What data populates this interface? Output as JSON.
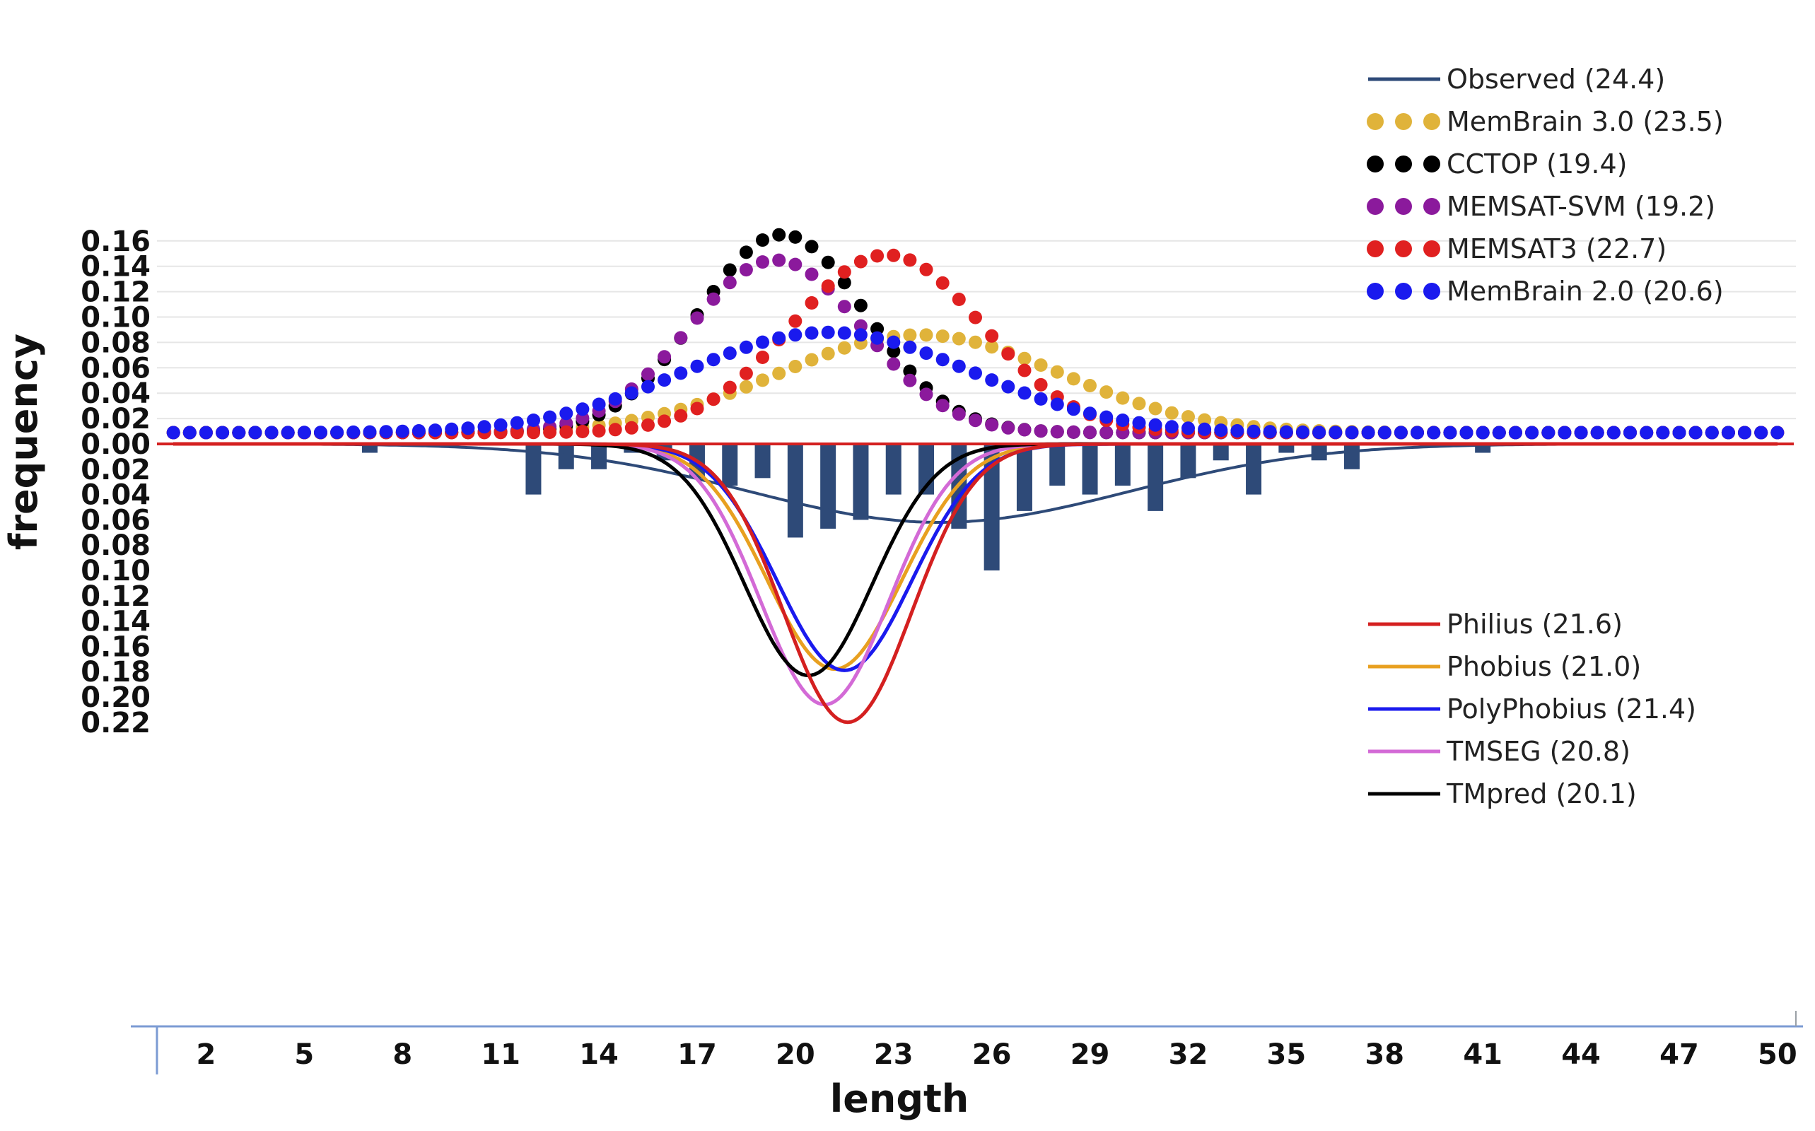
{
  "chart_data": {
    "type": "line",
    "xlabel": "length",
    "ylabel": "frequency",
    "x_range": [
      0.5,
      50.5
    ],
    "x_ticks": [
      2,
      5,
      8,
      11,
      14,
      17,
      20,
      23,
      26,
      29,
      32,
      35,
      38,
      41,
      44,
      47,
      50
    ],
    "upper_panel": {
      "ylim": [
        0,
        0.16
      ],
      "y_ticks": [
        0.0,
        0.02,
        0.04,
        0.06,
        0.08,
        0.1,
        0.12,
        0.14,
        0.16
      ],
      "y_tick_labels": [
        "0.00",
        "0.02",
        "0.04",
        "0.06",
        "0.08",
        "0.10",
        "0.12",
        "0.14",
        "0.16"
      ],
      "grid": true
    },
    "lower_panel": {
      "ylim": [
        0,
        0.22
      ],
      "inverted": true,
      "y_ticks": [
        0.02,
        0.04,
        0.06,
        0.08,
        0.1,
        0.12,
        0.14,
        0.16,
        0.18,
        0.2,
        0.22
      ],
      "y_tick_labels": [
        "0.02",
        "0.04",
        "0.06",
        "0.08",
        "0.10",
        "0.12",
        "0.14",
        "0.16",
        "0.18",
        "0.20",
        "0.22"
      ]
    },
    "legend_upper": [
      {
        "label": "Observed (24.4)",
        "color": "#2e4a78",
        "style": "line"
      },
      {
        "label": "MemBrain 3.0 (23.5)",
        "color": "#e0b33a",
        "style": "dots"
      },
      {
        "label": "CCTOP (19.4)",
        "color": "#000000",
        "style": "dots"
      },
      {
        "label": "MEMSAT-SVM (19.2)",
        "color": "#8b1a9c",
        "style": "dots"
      },
      {
        "label": "MEMSAT3 (22.7)",
        "color": "#e02020",
        "style": "dots"
      },
      {
        "label": "MemBrain 2.0 (20.6)",
        "color": "#1a1aee",
        "style": "dots"
      }
    ],
    "legend_lower": [
      {
        "label": "Philius (21.6)",
        "color": "#d42020"
      },
      {
        "label": "Phobius (21.0)",
        "color": "#e8a020"
      },
      {
        "label": "PolyPhobius (21.4)",
        "color": "#1a1aee"
      },
      {
        "label": "TMSEG (20.8)",
        "color": "#d36ad6"
      },
      {
        "label": "TMpred (20.1)",
        "color": "#000000"
      }
    ],
    "upper_series": [
      {
        "name": "MemBrain 3.0 (23.5)",
        "color": "#e0b33a",
        "peak_x": 23.8,
        "sigma": 4.3,
        "peak_y": 0.077
      },
      {
        "name": "CCTOP (19.4)",
        "color": "#000000",
        "peak_x": 19.6,
        "sigma": 2.55,
        "peak_y": 0.156
      },
      {
        "name": "MEMSAT-SVM (19.2)",
        "color": "#8b1a9c",
        "peak_x": 19.4,
        "sigma": 2.65,
        "peak_y": 0.136
      },
      {
        "name": "MEMSAT3 (22.7)",
        "color": "#e02020",
        "peak_x": 22.8,
        "sigma": 2.9,
        "peak_y": 0.14
      },
      {
        "name": "MemBrain 2.0 (20.6)",
        "color": "#1a1aee",
        "peak_x": 21.0,
        "sigma": 4.4,
        "peak_y": 0.079
      }
    ],
    "observed_bars": {
      "name": "Observed (24.4)",
      "color": "#2e4a78",
      "x": [
        7,
        12,
        13,
        14,
        15,
        16,
        17,
        18,
        19,
        20,
        21,
        22,
        23,
        24,
        25,
        26,
        27,
        28,
        29,
        30,
        31,
        32,
        33,
        34,
        35,
        36,
        37,
        41
      ],
      "values": [
        0.007,
        0.04,
        0.02,
        0.02,
        0.007,
        0.013,
        0.027,
        0.033,
        0.027,
        0.074,
        0.067,
        0.06,
        0.04,
        0.04,
        0.067,
        0.1,
        0.053,
        0.033,
        0.04,
        0.033,
        0.053,
        0.027,
        0.013,
        0.04,
        0.007,
        0.013,
        0.02,
        0.007
      ]
    },
    "observed_curve": {
      "name": "Observed (24.4)",
      "color": "#2e4a78",
      "peak_x": 24.4,
      "sigma": 5.8,
      "peak_y": 0.062
    },
    "lower_series": [
      {
        "name": "Philius (21.6)",
        "color": "#d42020",
        "peak_x": 21.6,
        "sigma": 1.95,
        "peak_y": 0.22
      },
      {
        "name": "Phobius (21.0)",
        "color": "#e8a020",
        "peak_x": 21.2,
        "sigma": 2.05,
        "peak_y": 0.178
      },
      {
        "name": "PolyPhobius (21.4)",
        "color": "#1a1aee",
        "peak_x": 21.5,
        "sigma": 2.05,
        "peak_y": 0.179
      },
      {
        "name": "TMSEG (20.8)",
        "color": "#d36ad6",
        "peak_x": 20.9,
        "sigma": 1.95,
        "peak_y": 0.206
      },
      {
        "name": "TMpred (20.1)",
        "color": "#000000",
        "peak_x": 20.4,
        "sigma": 1.95,
        "peak_y": 0.183
      }
    ]
  }
}
